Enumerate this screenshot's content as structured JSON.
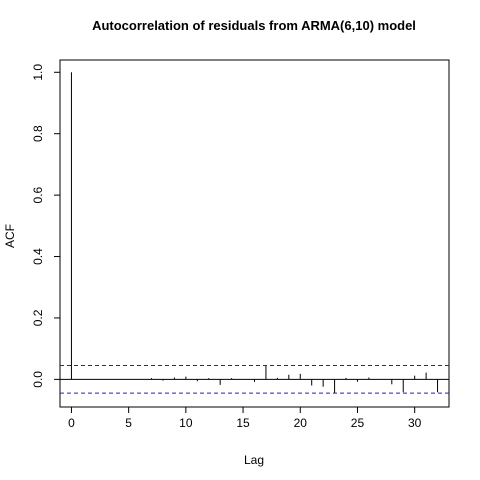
{
  "chart_data": {
    "type": "bar",
    "title": "Autocorrelation of residuals from ARMA(6,10) model",
    "xlabel": "Lag",
    "ylabel": "ACF",
    "xlim": [
      -1,
      33
    ],
    "ylim": [
      -0.09,
      1.04
    ],
    "xticks": [
      0,
      5,
      10,
      15,
      20,
      25,
      30
    ],
    "yticks": [
      0.0,
      0.2,
      0.4,
      0.6,
      0.8,
      1.0
    ],
    "ytick_labels": [
      "0.0",
      "0.2",
      "0.4",
      "0.6",
      "0.8",
      "1.0"
    ],
    "confidence_band": 0.045,
    "lags": [
      0,
      1,
      2,
      3,
      4,
      5,
      6,
      7,
      8,
      9,
      10,
      11,
      12,
      13,
      14,
      15,
      16,
      17,
      18,
      19,
      20,
      21,
      22,
      23,
      24,
      25,
      26,
      27,
      28,
      29,
      30,
      31,
      32
    ],
    "values": [
      1.0,
      0.0,
      0.0,
      0.0,
      0.0,
      0.0,
      0.0,
      0.004,
      -0.004,
      0.006,
      0.009,
      -0.006,
      0.004,
      -0.018,
      0.004,
      0.0,
      -0.008,
      0.044,
      0.005,
      0.015,
      0.018,
      -0.02,
      -0.024,
      -0.044,
      0.005,
      -0.008,
      0.006,
      0.0,
      -0.016,
      -0.042,
      0.012,
      0.022,
      -0.042
    ],
    "colors": {
      "bars": "#000000",
      "band": "#2323b8",
      "frame": "#000000"
    },
    "grid": false
  }
}
